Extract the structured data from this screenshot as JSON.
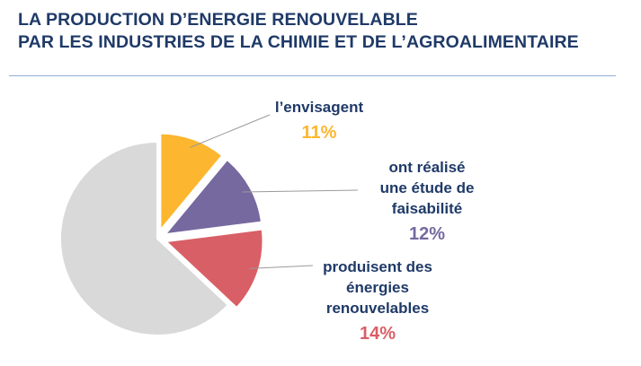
{
  "title_lines": [
    "LA PRODUCTION D’ENERGIE RENOUVELABLE",
    "PAR LES INDUSTRIES DE LA CHIMIE ET DE L’AGROALIMENTAIRE"
  ],
  "colors": {
    "title": "#1f3a68",
    "rule": "#8fb0dc",
    "rest": "#d9d9d9",
    "envisagent": "#fdb62f",
    "etude": "#76699f",
    "produisent": "#d95f66",
    "leader": "#9a9a9a"
  },
  "chart_data": {
    "type": "pie",
    "title": "LA PRODUCTION D’ENERGIE RENOUVELABLE PAR LES INDUSTRIES DE LA CHIMIE ET DE L’AGROALIMENTAIRE",
    "slices": [
      {
        "label_lines": [
          "l’envisagent"
        ],
        "value": 11,
        "pct_label": "11%",
        "color": "#fdb62f",
        "exploded": true
      },
      {
        "label_lines": [
          "ont réalisé",
          "une étude de",
          "faisabilité"
        ],
        "value": 12,
        "pct_label": "12%",
        "color": "#76699f",
        "exploded": true
      },
      {
        "label_lines": [
          "produisent des",
          "énergies",
          "renouvelables"
        ],
        "value": 14,
        "pct_label": "14%",
        "color": "#d95f66",
        "exploded": true
      },
      {
        "label_lines": [],
        "value": 63,
        "pct_label": "",
        "color": "#d9d9d9",
        "exploded": false
      }
    ]
  }
}
